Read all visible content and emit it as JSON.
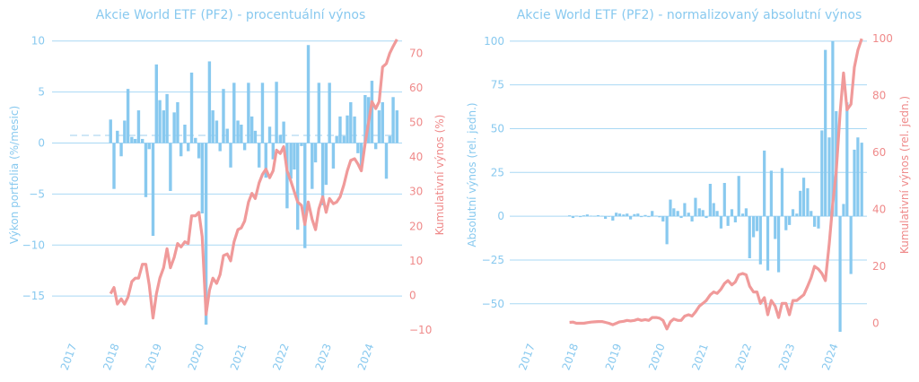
{
  "colors": {
    "bar": "#88c9ef",
    "line": "#f09a9a",
    "grid": "#a9d8f4",
    "left_text": "#88c9ef",
    "right_text": "#ef8a8a",
    "mean_line": "#cfe7f6"
  },
  "chart_data": [
    {
      "type": "bar",
      "title": "Akcie World ETF (PF2) - procentuální výnos",
      "ylabel": "Výkon portfolia (%/mesic)",
      "y2label": "Kumulativní výnos (%)",
      "xticks": [
        "2017",
        "2018",
        "2019",
        "2020",
        "2021",
        "2022",
        "2023",
        "2024"
      ],
      "xtick_values": [
        2017,
        2018,
        2019,
        2020,
        2021,
        2022,
        2023,
        2024
      ],
      "yticks": [
        "10",
        "5",
        "0",
        "−5",
        "−10",
        "−15"
      ],
      "ytick_values": [
        10,
        5,
        0,
        -5,
        -10,
        -15
      ],
      "y2ticks": [
        "70",
        "60",
        "50",
        "40",
        "30",
        "20",
        "10",
        "0",
        "−10"
      ],
      "y2tick_values": [
        70,
        60,
        50,
        40,
        30,
        20,
        10,
        0,
        -10
      ],
      "xlim": [
        2016.5,
        2024.75
      ],
      "ylim": [
        -18.5,
        10.5
      ],
      "y2lim": [
        -10.5,
        75
      ],
      "grid": true,
      "mean_line": 0.75,
      "series": [
        {
          "kind": "bar",
          "axis": "left",
          "x": [
            2017.88,
            2017.96,
            2018.04,
            2018.13,
            2018.21,
            2018.29,
            2018.38,
            2018.46,
            2018.54,
            2018.63,
            2018.71,
            2018.79,
            2018.88,
            2018.96,
            2019.04,
            2019.13,
            2019.21,
            2019.29,
            2019.38,
            2019.46,
            2019.54,
            2019.63,
            2019.71,
            2019.79,
            2019.88,
            2019.96,
            2020.04,
            2020.13,
            2020.21,
            2020.29,
            2020.38,
            2020.46,
            2020.54,
            2020.63,
            2020.71,
            2020.79,
            2020.88,
            2020.96,
            2021.04,
            2021.13,
            2021.21,
            2021.29,
            2021.38,
            2021.46,
            2021.54,
            2021.63,
            2021.71,
            2021.79,
            2021.88,
            2021.96,
            2022.04,
            2022.13,
            2022.21,
            2022.29,
            2022.38,
            2022.46,
            2022.54,
            2022.63,
            2022.71,
            2022.79,
            2022.88,
            2022.96,
            2023.04,
            2023.13,
            2023.21,
            2023.29,
            2023.38,
            2023.46,
            2023.54,
            2023.63,
            2023.71,
            2023.79,
            2023.88,
            2023.96,
            2024.04,
            2024.13,
            2024.21,
            2024.29,
            2024.38,
            2024.46,
            2024.54,
            2024.63
          ],
          "values": [
            2.3,
            -4.5,
            1.2,
            -1.3,
            2.2,
            5.3,
            0.6,
            0.4,
            3.2,
            0.4,
            -5.3,
            -0.6,
            -9.1,
            7.7,
            4.2,
            3.2,
            4.8,
            -4.7,
            3.0,
            4.0,
            -1.3,
            1.8,
            -0.8,
            6.9,
            0.5,
            -1.5,
            -6.9,
            -17.8,
            8.0,
            3.2,
            2.2,
            -0.8,
            5.3,
            1.4,
            -2.4,
            5.9,
            2.2,
            1.8,
            -0.7,
            5.9,
            2.6,
            1.2,
            -2.4,
            5.9,
            -3.4,
            1.6,
            -1.6,
            6.0,
            0.8,
            2.1,
            -6.4,
            -3.5,
            -2.6,
            -8.5,
            -0.3,
            -10.3,
            9.6,
            -4.5,
            -1.9,
            5.9,
            -6.1,
            -4.1,
            5.9,
            -2.5,
            0.7,
            2.6,
            0.7,
            2.7,
            4.0,
            2.6,
            -1.0,
            -2.5,
            4.7,
            4.5,
            6.1,
            -0.6,
            3.2,
            4.0,
            -3.5,
            0.7,
            4.5,
            3.2
          ]
        },
        {
          "kind": "line",
          "axis": "right",
          "x": [
            2017.88,
            2017.96,
            2018.04,
            2018.13,
            2018.21,
            2018.29,
            2018.38,
            2018.46,
            2018.54,
            2018.63,
            2018.71,
            2018.79,
            2018.88,
            2018.96,
            2019.04,
            2019.13,
            2019.21,
            2019.29,
            2019.38,
            2019.46,
            2019.54,
            2019.63,
            2019.71,
            2019.79,
            2019.88,
            2019.96,
            2020.04,
            2020.13,
            2020.21,
            2020.29,
            2020.38,
            2020.46,
            2020.54,
            2020.63,
            2020.71,
            2020.79,
            2020.88,
            2020.96,
            2021.04,
            2021.13,
            2021.21,
            2021.29,
            2021.38,
            2021.46,
            2021.54,
            2021.63,
            2021.71,
            2021.79,
            2021.88,
            2021.96,
            2022.04,
            2022.13,
            2022.21,
            2022.29,
            2022.38,
            2022.46,
            2022.54,
            2022.63,
            2022.71,
            2022.79,
            2022.88,
            2022.96,
            2023.04,
            2023.13,
            2023.21,
            2023.29,
            2023.38,
            2023.46,
            2023.54,
            2023.63,
            2023.71,
            2023.79,
            2023.88,
            2023.96,
            2024.04,
            2024.13,
            2024.21,
            2024.29,
            2024.38,
            2024.46,
            2024.54,
            2024.63
          ],
          "values": [
            0.5,
            2.3,
            -2.5,
            -1.0,
            -2.5,
            -0.5,
            4.0,
            5.0,
            5.0,
            9.0,
            9.0,
            3.0,
            -6.5,
            0.5,
            5.0,
            8.0,
            13.5,
            8.0,
            11.0,
            15.0,
            14.0,
            15.5,
            15.0,
            23.0,
            23.0,
            24.0,
            17.0,
            -5.5,
            1.5,
            5.0,
            3.5,
            6.0,
            11.5,
            12.0,
            10.0,
            15.5,
            19.0,
            19.5,
            21.5,
            27.0,
            29.5,
            28.0,
            32.5,
            35.0,
            36.5,
            34.0,
            36.0,
            42.0,
            41.0,
            43.0,
            36.0,
            33.0,
            30.0,
            27.0,
            26.0,
            20.5,
            27.0,
            22.0,
            19.0,
            25.0,
            28.5,
            24.0,
            28.0,
            26.5,
            27.0,
            28.5,
            32.0,
            36.0,
            39.0,
            39.5,
            38.0,
            36.0,
            44.0,
            50.0,
            56.0,
            54.0,
            56.0,
            66.0,
            67.0,
            70.0,
            72.0,
            74.0
          ]
        }
      ]
    },
    {
      "type": "bar",
      "title": "Akcie World ETF (PF2) - normalizovaný absolutní výnos",
      "ylabel": "Absolutní výnos (rel. jedn.)",
      "y2label": "Kumulativní výnos (rel. jedn.)",
      "xticks": [
        "2017",
        "2018",
        "2019",
        "2020",
        "2021",
        "2022",
        "2023",
        "2024"
      ],
      "xtick_values": [
        2017,
        2018,
        2019,
        2020,
        2021,
        2022,
        2023,
        2024
      ],
      "yticks": [
        "100",
        "75",
        "50",
        "25",
        "0",
        "−25",
        "−50"
      ],
      "ytick_values": [
        100,
        75,
        50,
        25,
        0,
        -25,
        -50
      ],
      "y2ticks": [
        "100",
        "80",
        "60",
        "40",
        "20",
        "0"
      ],
      "y2tick_values": [
        100,
        80,
        60,
        40,
        20,
        0
      ],
      "xlim": [
        2016.5,
        2024.75
      ],
      "ylim": [
        -66,
        103
      ],
      "y2lim": [
        -3,
        101
      ],
      "grid": true,
      "series": [
        {
          "kind": "bar",
          "axis": "left",
          "x": [
            2017.88,
            2017.96,
            2018.04,
            2018.13,
            2018.21,
            2018.29,
            2018.38,
            2018.46,
            2018.54,
            2018.63,
            2018.71,
            2018.79,
            2018.88,
            2018.96,
            2019.04,
            2019.13,
            2019.21,
            2019.29,
            2019.38,
            2019.46,
            2019.54,
            2019.63,
            2019.71,
            2019.79,
            2019.88,
            2019.96,
            2020.04,
            2020.13,
            2020.21,
            2020.29,
            2020.38,
            2020.46,
            2020.54,
            2020.63,
            2020.71,
            2020.79,
            2020.88,
            2020.96,
            2021.04,
            2021.13,
            2021.21,
            2021.29,
            2021.38,
            2021.46,
            2021.54,
            2021.63,
            2021.71,
            2021.79,
            2021.88,
            2021.96,
            2022.04,
            2022.13,
            2022.21,
            2022.29,
            2022.38,
            2022.46,
            2022.54,
            2022.63,
            2022.71,
            2022.79,
            2022.88,
            2022.96,
            2023.04,
            2023.13,
            2023.21,
            2023.29,
            2023.38,
            2023.46,
            2023.54,
            2023.63,
            2023.71,
            2023.79,
            2023.88,
            2023.96,
            2024.04,
            2024.13,
            2024.21,
            2024.29,
            2024.38,
            2024.46,
            2024.54,
            2024.63
          ],
          "values": [
            0.5,
            -1.0,
            0.3,
            -0.5,
            0.5,
            1.0,
            0.3,
            0.2,
            0.6,
            0.2,
            -1.5,
            -0.3,
            -2.5,
            2.0,
            1.5,
            1.0,
            1.5,
            -1.8,
            1.2,
            1.5,
            -0.5,
            0.7,
            -0.5,
            3.0,
            0.3,
            -0.6,
            -3.0,
            -16.0,
            9.5,
            4.5,
            3.0,
            -1.0,
            7.5,
            2.0,
            -3.0,
            10.5,
            4.5,
            3.5,
            -1.0,
            18.5,
            7.5,
            3.0,
            -7.0,
            19.0,
            -5.5,
            4.0,
            -3.5,
            23.0,
            1.5,
            4.5,
            -24.0,
            -12.0,
            -8.5,
            -27.5,
            37.5,
            -31.0,
            26.0,
            -13.0,
            -32.0,
            27.5,
            -8.0,
            -5.0,
            4.0,
            1.5,
            14.5,
            22.0,
            16.0,
            3.0,
            -6.0,
            -7.0,
            49.0,
            95.0,
            45.0,
            100.0,
            60.0,
            -66.0,
            7.0,
            65.0,
            -33.0,
            38.0,
            45.0,
            42.0
          ]
        },
        {
          "kind": "line",
          "axis": "right",
          "x": [
            2017.88,
            2017.96,
            2018.04,
            2018.13,
            2018.21,
            2018.29,
            2018.38,
            2018.46,
            2018.54,
            2018.63,
            2018.71,
            2018.79,
            2018.88,
            2018.96,
            2019.04,
            2019.13,
            2019.21,
            2019.29,
            2019.38,
            2019.46,
            2019.54,
            2019.63,
            2019.71,
            2019.79,
            2019.88,
            2019.96,
            2020.04,
            2020.13,
            2020.21,
            2020.29,
            2020.38,
            2020.46,
            2020.54,
            2020.63,
            2020.71,
            2020.79,
            2020.88,
            2020.96,
            2021.04,
            2021.13,
            2021.21,
            2021.29,
            2021.38,
            2021.46,
            2021.54,
            2021.63,
            2021.71,
            2021.79,
            2021.88,
            2021.96,
            2022.04,
            2022.13,
            2022.21,
            2022.29,
            2022.38,
            2022.46,
            2022.54,
            2022.63,
            2022.71,
            2022.79,
            2022.88,
            2022.96,
            2023.04,
            2023.13,
            2023.21,
            2023.29,
            2023.38,
            2023.46,
            2023.54,
            2023.63,
            2023.71,
            2023.79,
            2023.88,
            2023.96,
            2024.04,
            2024.13,
            2024.21,
            2024.29,
            2024.38,
            2024.46,
            2024.54,
            2024.63
          ],
          "values": [
            0.3,
            0.4,
            0.0,
            0.0,
            0.0,
            0.2,
            0.4,
            0.5,
            0.6,
            0.6,
            0.3,
            0.0,
            -0.5,
            0.0,
            0.5,
            0.7,
            1.0,
            0.8,
            1.0,
            1.4,
            1.0,
            1.3,
            1.0,
            2.0,
            2.0,
            1.8,
            1.0,
            -2.0,
            0.5,
            1.5,
            1.0,
            1.0,
            2.5,
            3.0,
            2.5,
            4.0,
            6.0,
            7.0,
            8.0,
            10.0,
            11.0,
            10.5,
            12.0,
            14.0,
            15.0,
            13.5,
            14.5,
            17.0,
            17.5,
            17.0,
            13.0,
            11.0,
            11.0,
            7.0,
            9.0,
            3.0,
            8.0,
            6.0,
            2.0,
            7.0,
            7.0,
            3.0,
            8.0,
            8.0,
            9.0,
            10.0,
            13.0,
            16.0,
            20.0,
            19.0,
            17.5,
            15.0,
            28.0,
            42.0,
            53.0,
            74.0,
            88.0,
            75.0,
            77.0,
            90.0,
            96.0,
            100.0
          ]
        }
      ]
    }
  ]
}
